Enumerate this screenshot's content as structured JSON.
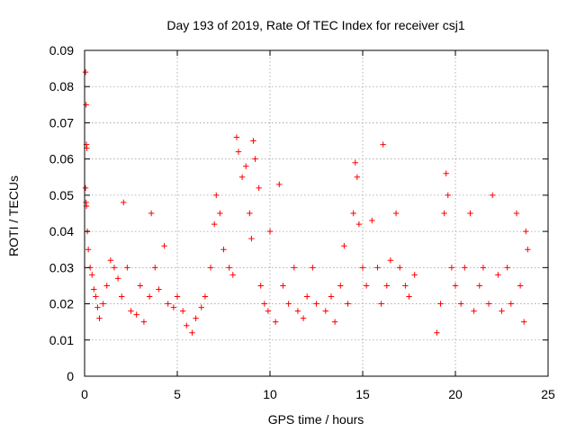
{
  "chart_data": {
    "type": "scatter",
    "title": "Day 193 of 2019, Rate Of TEC Index for receiver csj1",
    "xlabel": "GPS time / hours",
    "ylabel": "ROTI / TECUs",
    "xlim": [
      0,
      25
    ],
    "ylim": [
      0,
      0.09
    ],
    "x_ticks": [
      0,
      5,
      10,
      15,
      20,
      25
    ],
    "x_tick_labels": [
      "0",
      "5",
      "10",
      "15",
      "20",
      "25"
    ],
    "y_ticks": [
      0,
      0.01,
      0.02,
      0.03,
      0.04,
      0.05,
      0.06,
      0.07,
      0.08,
      0.09
    ],
    "y_tick_labels": [
      "0",
      "0.01",
      "0.02",
      "0.03",
      "0.04",
      "0.05",
      "0.06",
      "0.07",
      "0.08",
      "0.09"
    ],
    "grid": true,
    "marker": "+",
    "color": "#ff0000",
    "series": [
      {
        "name": "ROTI",
        "points": [
          [
            0.05,
            0.084
          ],
          [
            0.08,
            0.075
          ],
          [
            0.1,
            0.064
          ],
          [
            0.12,
            0.063
          ],
          [
            0.05,
            0.052
          ],
          [
            0.08,
            0.048
          ],
          [
            0.1,
            0.047
          ],
          [
            0.15,
            0.04
          ],
          [
            0.2,
            0.035
          ],
          [
            0.3,
            0.03
          ],
          [
            0.4,
            0.028
          ],
          [
            0.5,
            0.024
          ],
          [
            0.6,
            0.022
          ],
          [
            0.7,
            0.019
          ],
          [
            0.8,
            0.016
          ],
          [
            1.0,
            0.02
          ],
          [
            1.2,
            0.025
          ],
          [
            1.4,
            0.032
          ],
          [
            1.6,
            0.03
          ],
          [
            1.8,
            0.027
          ],
          [
            2.0,
            0.022
          ],
          [
            2.1,
            0.048
          ],
          [
            2.3,
            0.03
          ],
          [
            2.5,
            0.018
          ],
          [
            2.8,
            0.017
          ],
          [
            3.0,
            0.025
          ],
          [
            3.2,
            0.015
          ],
          [
            3.5,
            0.022
          ],
          [
            3.6,
            0.045
          ],
          [
            3.8,
            0.03
          ],
          [
            4.0,
            0.024
          ],
          [
            4.3,
            0.036
          ],
          [
            4.5,
            0.02
          ],
          [
            4.8,
            0.019
          ],
          [
            5.0,
            0.022
          ],
          [
            5.3,
            0.018
          ],
          [
            5.5,
            0.014
          ],
          [
            5.8,
            0.012
          ],
          [
            6.0,
            0.016
          ],
          [
            6.3,
            0.019
          ],
          [
            6.5,
            0.022
          ],
          [
            6.8,
            0.03
          ],
          [
            7.0,
            0.042
          ],
          [
            7.1,
            0.05
          ],
          [
            7.3,
            0.045
          ],
          [
            7.5,
            0.035
          ],
          [
            7.8,
            0.03
          ],
          [
            8.0,
            0.028
          ],
          [
            8.2,
            0.066
          ],
          [
            8.3,
            0.062
          ],
          [
            8.5,
            0.055
          ],
          [
            8.7,
            0.058
          ],
          [
            8.9,
            0.045
          ],
          [
            9.0,
            0.038
          ],
          [
            9.1,
            0.065
          ],
          [
            9.2,
            0.06
          ],
          [
            9.4,
            0.052
          ],
          [
            9.5,
            0.025
          ],
          [
            9.7,
            0.02
          ],
          [
            9.9,
            0.018
          ],
          [
            10.0,
            0.04
          ],
          [
            10.3,
            0.015
          ],
          [
            10.5,
            0.053
          ],
          [
            10.7,
            0.025
          ],
          [
            11.0,
            0.02
          ],
          [
            11.3,
            0.03
          ],
          [
            11.5,
            0.018
          ],
          [
            11.8,
            0.016
          ],
          [
            12.0,
            0.022
          ],
          [
            12.3,
            0.03
          ],
          [
            12.5,
            0.02
          ],
          [
            13.0,
            0.018
          ],
          [
            13.3,
            0.022
          ],
          [
            13.5,
            0.015
          ],
          [
            13.8,
            0.025
          ],
          [
            14.0,
            0.036
          ],
          [
            14.2,
            0.02
          ],
          [
            14.5,
            0.045
          ],
          [
            14.6,
            0.059
          ],
          [
            14.7,
            0.055
          ],
          [
            14.8,
            0.042
          ],
          [
            15.0,
            0.03
          ],
          [
            15.2,
            0.025
          ],
          [
            15.5,
            0.043
          ],
          [
            15.8,
            0.03
          ],
          [
            16.0,
            0.02
          ],
          [
            16.1,
            0.064
          ],
          [
            16.3,
            0.025
          ],
          [
            16.5,
            0.032
          ],
          [
            16.8,
            0.045
          ],
          [
            17.0,
            0.03
          ],
          [
            17.3,
            0.025
          ],
          [
            17.5,
            0.022
          ],
          [
            17.8,
            0.028
          ],
          [
            19.0,
            0.012
          ],
          [
            19.2,
            0.02
          ],
          [
            19.4,
            0.045
          ],
          [
            19.5,
            0.056
          ],
          [
            19.6,
            0.05
          ],
          [
            19.8,
            0.03
          ],
          [
            20.0,
            0.025
          ],
          [
            20.3,
            0.02
          ],
          [
            20.5,
            0.03
          ],
          [
            20.8,
            0.045
          ],
          [
            21.0,
            0.018
          ],
          [
            21.3,
            0.025
          ],
          [
            21.5,
            0.03
          ],
          [
            21.8,
            0.02
          ],
          [
            22.0,
            0.05
          ],
          [
            22.3,
            0.028
          ],
          [
            22.5,
            0.018
          ],
          [
            22.8,
            0.03
          ],
          [
            23.0,
            0.02
          ],
          [
            23.3,
            0.045
          ],
          [
            23.5,
            0.025
          ],
          [
            23.7,
            0.015
          ],
          [
            23.8,
            0.04
          ],
          [
            23.9,
            0.035
          ]
        ]
      }
    ]
  }
}
